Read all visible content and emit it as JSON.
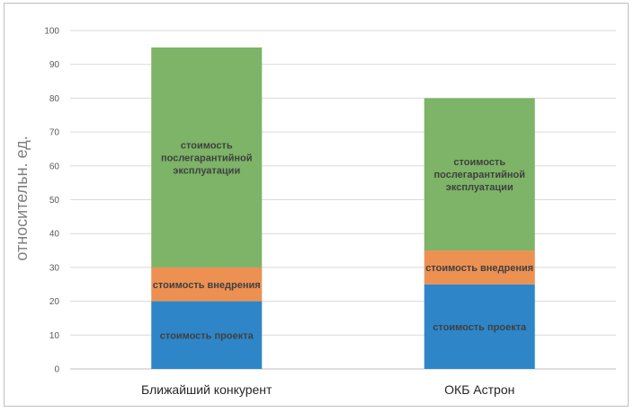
{
  "chart_data": {
    "type": "bar",
    "stacked": true,
    "categories": [
      "Ближайший конкурент",
      "ОКБ Астрон"
    ],
    "series": [
      {
        "name": "стоимость проекта",
        "values": [
          20,
          25
        ],
        "color": "#2e86c9"
      },
      {
        "name": "стоимость внедрения",
        "values": [
          10,
          10
        ],
        "color": "#ec9152"
      },
      {
        "name": "стоимость послегарантийной эксплуатации",
        "values": [
          65,
          45
        ],
        "color": "#7db467"
      }
    ],
    "title": "",
    "xlabel": "",
    "ylabel": "относительн. ед.",
    "ylim": [
      0,
      100
    ],
    "yticks": [
      0,
      10,
      20,
      30,
      40,
      50,
      60,
      70,
      80,
      90,
      100
    ],
    "grid": true,
    "legend": "none",
    "segment_labels": [
      [
        "стоимость проекта",
        "стоимость проекта"
      ],
      [
        "стоимость внедрения",
        "стоимость внедрения"
      ],
      [
        [
          "стоимость",
          "послегарантийной",
          "эксплуатации"
        ],
        [
          "стоимость",
          "послегарантийной",
          "эксплуатации"
        ]
      ]
    ]
  }
}
